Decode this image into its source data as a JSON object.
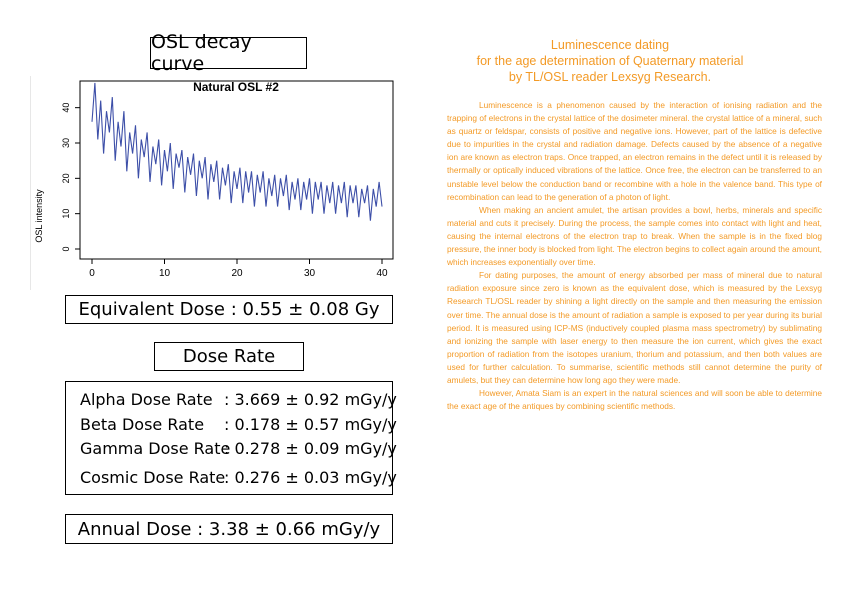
{
  "left": {
    "title": "OSL decay curve",
    "equivalent_dose": "Equivalent Dose : 0.55 ± 0.08 Gy",
    "dose_rate_title": "Dose Rate",
    "dose_rates": [
      {
        "label": "Alpha Dose Rate",
        "value": ": 3.669 ± 0.92 mGy/y"
      },
      {
        "label": "Beta Dose Rate",
        "value": ": 0.178 ± 0.57 mGy/y"
      },
      {
        "label": "Gamma Dose Rate",
        "value": ": 0.278 ± 0.09 mGy/y"
      },
      {
        "label": "Cosmic Dose Rate",
        "value": ": 0.276 ± 0.03 mGy/y"
      }
    ],
    "annual_dose": "Annual Dose : 3.38 ± 0.66 mGy/y"
  },
  "chart_data": {
    "type": "line",
    "title": "Natural OSL #2",
    "xlabel": "",
    "ylabel": "OSL intensity",
    "xlim": [
      0,
      40
    ],
    "ylim": [
      0,
      45
    ],
    "xticks": [
      "0",
      "10",
      "20",
      "30",
      "40"
    ],
    "yticks": [
      "0",
      "10",
      "20",
      "30",
      "40"
    ],
    "series": [
      {
        "color": "#3d4fa8",
        "x": [
          0.0,
          0.4,
          0.8,
          1.2,
          1.6,
          2.0,
          2.4,
          2.8,
          3.2,
          3.6,
          4.0,
          4.4,
          4.8,
          5.2,
          5.6,
          6.0,
          6.4,
          6.8,
          7.2,
          7.6,
          8.0,
          8.4,
          8.8,
          9.2,
          9.6,
          10.0,
          10.4,
          10.8,
          11.2,
          11.6,
          12.0,
          12.4,
          12.8,
          13.2,
          13.6,
          14.0,
          14.4,
          14.8,
          15.2,
          15.6,
          16.0,
          16.4,
          16.8,
          17.2,
          17.6,
          18.0,
          18.4,
          18.8,
          19.2,
          19.6,
          20.0,
          20.4,
          20.8,
          21.2,
          21.6,
          22.0,
          22.4,
          22.8,
          23.2,
          23.6,
          24.0,
          24.4,
          24.8,
          25.2,
          25.6,
          26.0,
          26.4,
          26.8,
          27.2,
          27.6,
          28.0,
          28.4,
          28.8,
          29.2,
          29.6,
          30.0,
          30.4,
          30.8,
          31.2,
          31.6,
          32.0,
          32.4,
          32.8,
          33.2,
          33.6,
          34.0,
          34.4,
          34.8,
          35.2,
          35.6,
          36.0,
          36.4,
          36.8,
          37.2,
          37.6,
          38.0,
          38.4,
          38.8,
          39.2,
          39.6,
          40.0
        ],
        "y": [
          36,
          47,
          31,
          42,
          27,
          39,
          33,
          43,
          25,
          36,
          29,
          39,
          22,
          33,
          27,
          35,
          20,
          31,
          26,
          33,
          19,
          29,
          24,
          31,
          18,
          28,
          22,
          30,
          17,
          27,
          23,
          28,
          16,
          26,
          21,
          27,
          15,
          25,
          20,
          26,
          14,
          24,
          19,
          25,
          14,
          23,
          18,
          24,
          13,
          22,
          17,
          23,
          13,
          22,
          16,
          22,
          12,
          21,
          16,
          22,
          12,
          20,
          15,
          21,
          12,
          20,
          15,
          21,
          11,
          19,
          14,
          20,
          11,
          19,
          14,
          20,
          10,
          19,
          14,
          19,
          10,
          18,
          13,
          19,
          10,
          18,
          13,
          19,
          9,
          18,
          13,
          18,
          9,
          17,
          13,
          18,
          8,
          17,
          12,
          19,
          12
        ]
      }
    ]
  },
  "right": {
    "title_lines": [
      "Luminescence dating",
      "for the age determination of Quaternary material",
      "by TL/OSL reader Lexsyg Research."
    ],
    "paragraphs": [
      "Luminescence is a phenomenon caused by the interaction of ionising radiation and the trapping of electrons in the crystal lattice of the dosimeter mineral. the crystal lattice of a mineral, such as quartz or feldspar, consists of positive and negative ions. However, part of the lattice is defective due to impurities in the crystal and radiation damage. Defects caused by the absence of a negative ion are known as electron traps. Once trapped, an electron remains in the defect until it is released by thermally or optically induced vibrations of the lattice. Once free, the electron can be transferred to an unstable level below the conduction band or recombine with a hole in the valence band. This type of recombination can lead to the generation of a photon of light.",
      "When making an ancient amulet, the artisan provides a bowl, herbs, minerals and specific material and cuts it precisely. During the process, the sample comes into contact with light and heat, causing the internal electrons of the electron trap to break. When the sample is in the fixed blog pressure, the inner body is blocked from light. The electron begins to collect again around the amount, which increases exponentially over time.",
      "For dating purposes, the amount of energy absorbed per mass of mineral due to natural radiation exposure since zero is known as the equivalent dose, which is measured by the Lexsyg Research TL/OSL reader by shining a light directly on the sample and then measuring the emission over time. The annual dose is the amount of radiation a sample is exposed to per year during its burial period. It is measured using ICP-MS (inductively coupled plasma mass spectrometry) by sublimating and ionizing the sample with laser energy to then measure the ion current, which gives the exact proportion of radiation from the isotopes uranium, thorium and potassium, and then both values are used for further calculation. To summarise, scientific methods still cannot determine the purity of amulets, but they can determine how long ago they were made.",
      "However, Amata Siam is an expert in the natural sciences and will soon be able to determine the exact age of the antiques by combining scientific methods."
    ]
  }
}
